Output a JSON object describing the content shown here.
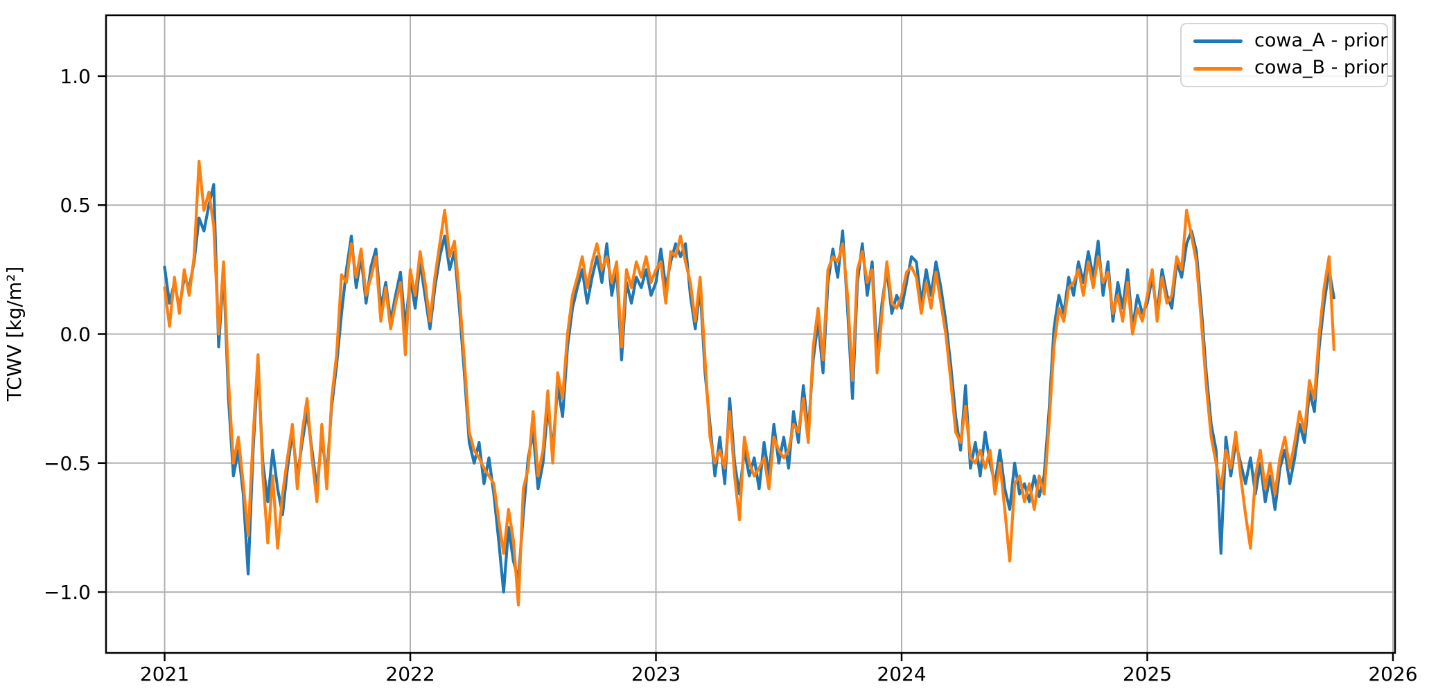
{
  "figure": {
    "background": "#ffffff",
    "frame_color": "#000000"
  },
  "chart_data": {
    "type": "line",
    "title": "",
    "xlabel": "",
    "ylabel": "TCWV [kg/m²]",
    "grid": true,
    "grid_color": "#b0b0b0",
    "legend_position": "upper right",
    "xlim": [
      2020.7615,
      2026.0085
    ],
    "ylim": [
      -1.236,
      1.236
    ],
    "x_ticks": [
      2021,
      2022,
      2023,
      2024,
      2025,
      2026
    ],
    "x_tick_labels": [
      "2021",
      "2022",
      "2023",
      "2024",
      "2025",
      "2026"
    ],
    "y_ticks": [
      1.0,
      0.5,
      0.0,
      -0.5,
      -1.0
    ],
    "y_tick_labels": [
      "1.0",
      "0.5",
      "0.0",
      "−0.5",
      "−1.0"
    ],
    "x_start": 2021.0,
    "x_step": 0.02,
    "series": [
      {
        "name": "cowa_A - prior",
        "color": "#1f77b4",
        "values": [
          0.26,
          0.12,
          0.2,
          0.1,
          0.22,
          0.18,
          0.28,
          0.45,
          0.4,
          0.5,
          0.58,
          -0.05,
          0.25,
          -0.25,
          -0.55,
          -0.45,
          -0.62,
          -0.93,
          -0.45,
          -0.12,
          -0.5,
          -0.65,
          -0.45,
          -0.6,
          -0.7,
          -0.52,
          -0.38,
          -0.55,
          -0.42,
          -0.3,
          -0.45,
          -0.6,
          -0.4,
          -0.55,
          -0.28,
          -0.12,
          0.08,
          0.25,
          0.38,
          0.18,
          0.3,
          0.12,
          0.26,
          0.33,
          0.1,
          0.2,
          0.05,
          0.15,
          0.24,
          0.02,
          0.22,
          0.1,
          0.28,
          0.15,
          0.02,
          0.18,
          0.3,
          0.38,
          0.25,
          0.32,
          0.1,
          -0.15,
          -0.42,
          -0.5,
          -0.42,
          -0.58,
          -0.48,
          -0.62,
          -0.8,
          -1.0,
          -0.75,
          -0.88,
          -0.95,
          -0.7,
          -0.48,
          -0.38,
          -0.6,
          -0.5,
          -0.28,
          -0.45,
          -0.2,
          -0.32,
          -0.05,
          0.1,
          0.18,
          0.25,
          0.12,
          0.22,
          0.3,
          0.2,
          0.35,
          0.15,
          0.25,
          -0.1,
          0.2,
          0.12,
          0.22,
          0.18,
          0.25,
          0.15,
          0.2,
          0.33,
          0.18,
          0.28,
          0.35,
          0.3,
          0.35,
          0.15,
          0.02,
          0.18,
          -0.15,
          -0.35,
          -0.55,
          -0.4,
          -0.58,
          -0.25,
          -0.5,
          -0.62,
          -0.45,
          -0.55,
          -0.48,
          -0.6,
          -0.42,
          -0.55,
          -0.35,
          -0.5,
          -0.4,
          -0.52,
          -0.3,
          -0.42,
          -0.2,
          -0.38,
          -0.1,
          0.05,
          -0.15,
          0.2,
          0.33,
          0.22,
          0.4,
          0.1,
          -0.25,
          0.2,
          0.35,
          0.15,
          0.28,
          -0.08,
          0.12,
          0.25,
          0.08,
          0.15,
          0.1,
          0.2,
          0.3,
          0.28,
          0.12,
          0.25,
          0.15,
          0.28,
          0.18,
          0.05,
          -0.12,
          -0.32,
          -0.45,
          -0.2,
          -0.52,
          -0.42,
          -0.55,
          -0.38,
          -0.5,
          -0.58,
          -0.45,
          -0.6,
          -0.68,
          -0.5,
          -0.62,
          -0.58,
          -0.65,
          -0.55,
          -0.63,
          -0.55,
          -0.3,
          0.02,
          0.15,
          0.08,
          0.22,
          0.15,
          0.28,
          0.2,
          0.32,
          0.22,
          0.36,
          0.15,
          0.28,
          0.05,
          0.2,
          0.1,
          0.25,
          0.02,
          0.15,
          0.08,
          0.12,
          0.22,
          0.08,
          0.25,
          0.15,
          0.1,
          0.28,
          0.22,
          0.35,
          0.4,
          0.32,
          0.1,
          -0.15,
          -0.35,
          -0.45,
          -0.85,
          -0.4,
          -0.55,
          -0.42,
          -0.5,
          -0.58,
          -0.48,
          -0.62,
          -0.5,
          -0.65,
          -0.55,
          -0.68,
          -0.52,
          -0.45,
          -0.58,
          -0.48,
          -0.35,
          -0.42,
          -0.22,
          -0.3,
          -0.05,
          0.12,
          0.25,
          0.14
        ]
      },
      {
        "name": "cowa_B - prior",
        "color": "#ff7f0e",
        "values": [
          0.18,
          0.03,
          0.22,
          0.08,
          0.25,
          0.15,
          0.3,
          0.67,
          0.48,
          0.55,
          0.42,
          0.0,
          0.28,
          -0.18,
          -0.5,
          -0.4,
          -0.58,
          -0.78,
          -0.4,
          -0.08,
          -0.55,
          -0.81,
          -0.55,
          -0.83,
          -0.62,
          -0.48,
          -0.35,
          -0.6,
          -0.38,
          -0.25,
          -0.48,
          -0.65,
          -0.35,
          -0.6,
          -0.25,
          -0.08,
          0.23,
          0.2,
          0.35,
          0.22,
          0.33,
          0.15,
          0.22,
          0.3,
          0.05,
          0.18,
          0.02,
          0.12,
          0.2,
          -0.08,
          0.25,
          0.15,
          0.32,
          0.2,
          0.05,
          0.22,
          0.35,
          0.48,
          0.3,
          0.36,
          0.15,
          -0.1,
          -0.38,
          -0.45,
          -0.48,
          -0.52,
          -0.55,
          -0.58,
          -0.72,
          -0.85,
          -0.68,
          -0.8,
          -1.05,
          -0.6,
          -0.52,
          -0.3,
          -0.55,
          -0.45,
          -0.22,
          -0.5,
          -0.15,
          -0.25,
          0.0,
          0.15,
          0.22,
          0.3,
          0.18,
          0.28,
          0.35,
          0.25,
          0.3,
          0.2,
          0.28,
          -0.05,
          0.25,
          0.18,
          0.28,
          0.22,
          0.3,
          0.2,
          0.25,
          0.28,
          0.12,
          0.32,
          0.3,
          0.38,
          0.28,
          0.2,
          0.05,
          0.22,
          -0.1,
          -0.4,
          -0.5,
          -0.45,
          -0.52,
          -0.3,
          -0.55,
          -0.72,
          -0.4,
          -0.5,
          -0.55,
          -0.52,
          -0.48,
          -0.6,
          -0.4,
          -0.45,
          -0.48,
          -0.45,
          -0.35,
          -0.38,
          -0.25,
          -0.42,
          -0.05,
          0.1,
          -0.1,
          0.25,
          0.3,
          0.28,
          0.35,
          0.15,
          -0.18,
          0.25,
          0.32,
          0.2,
          0.25,
          -0.15,
          0.08,
          0.28,
          0.12,
          0.1,
          0.15,
          0.24,
          0.26,
          0.22,
          0.08,
          0.2,
          0.1,
          0.24,
          0.12,
          0.0,
          -0.18,
          -0.38,
          -0.42,
          -0.28,
          -0.48,
          -0.5,
          -0.45,
          -0.52,
          -0.45,
          -0.62,
          -0.5,
          -0.68,
          -0.88,
          -0.58,
          -0.55,
          -0.65,
          -0.58,
          -0.68,
          -0.55,
          -0.62,
          -0.35,
          -0.05,
          0.1,
          0.05,
          0.18,
          0.2,
          0.25,
          0.15,
          0.28,
          0.18,
          0.3,
          0.2,
          0.24,
          0.08,
          0.15,
          0.05,
          0.2,
          0.0,
          0.1,
          0.05,
          0.15,
          0.25,
          0.05,
          0.22,
          0.12,
          0.15,
          0.3,
          0.25,
          0.48,
          0.38,
          0.28,
          0.05,
          -0.2,
          -0.4,
          -0.5,
          -0.6,
          -0.45,
          -0.52,
          -0.38,
          -0.55,
          -0.7,
          -0.83,
          -0.55,
          -0.45,
          -0.6,
          -0.5,
          -0.62,
          -0.48,
          -0.4,
          -0.52,
          -0.42,
          -0.3,
          -0.38,
          -0.18,
          -0.25,
          0.0,
          0.18,
          0.3,
          -0.06
        ]
      }
    ]
  }
}
